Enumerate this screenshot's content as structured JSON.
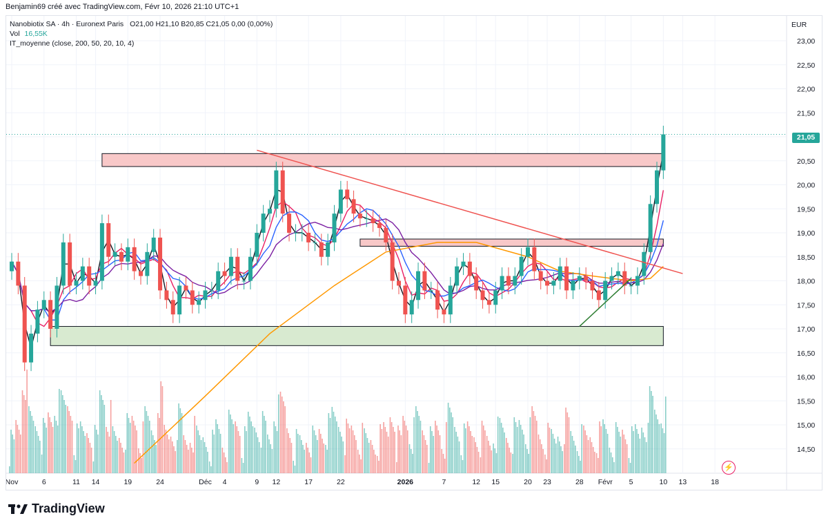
{
  "header": {
    "credit": "Benjamin69 créé avec TradingView.com, Févr 10, 2026 21:10 UTC+1"
  },
  "legend": {
    "symbol_line": "Nanobiotix SA · 4h · Euronext Paris",
    "ohlc": "O21,00  H21,10  B20,85  C21,05  0,00 (0,00%)",
    "vol_label": "Vol",
    "vol_value": "16,55K",
    "indicator": "IT_moyenne (close, 200, 50, 20, 10, 4)"
  },
  "price_axis": {
    "currency": "EUR",
    "labels": [
      "23,00",
      "22,50",
      "22,00",
      "21,50",
      "21,00",
      "20,50",
      "20,00",
      "19,50",
      "19,00",
      "18,50",
      "18,00",
      "17,50",
      "17,00",
      "16,50",
      "16,00",
      "15,50",
      "15,00",
      "14,50"
    ],
    "last_price": "21,05"
  },
  "time_axis": {
    "labels": [
      {
        "t": "Nov",
        "d": 0
      },
      {
        "t": "6",
        "d": 5
      },
      {
        "t": "11",
        "d": 10
      },
      {
        "t": "14",
        "d": 13
      },
      {
        "t": "19",
        "d": 18
      },
      {
        "t": "24",
        "d": 23
      },
      {
        "t": "Déc",
        "d": 30
      },
      {
        "t": "4",
        "d": 33
      },
      {
        "t": "9",
        "d": 38
      },
      {
        "t": "12",
        "d": 41
      },
      {
        "t": "17",
        "d": 46
      },
      {
        "t": "22",
        "d": 51
      },
      {
        "t": "2026",
        "d": 61,
        "bold": true
      },
      {
        "t": "7",
        "d": 67
      },
      {
        "t": "12",
        "d": 72
      },
      {
        "t": "15",
        "d": 75
      },
      {
        "t": "20",
        "d": 80
      },
      {
        "t": "23",
        "d": 83
      },
      {
        "t": "28",
        "d": 88
      },
      {
        "t": "Févr",
        "d": 92
      },
      {
        "t": "5",
        "d": 96
      },
      {
        "t": "10",
        "d": 101
      },
      {
        "t": "13",
        "d": 104
      },
      {
        "t": "18",
        "d": 109
      }
    ]
  },
  "footer": {
    "brand": "TradingView"
  },
  "colors": {
    "up": "#26a69a",
    "down": "#ef5350",
    "ma200": "#ff9800",
    "ma50": "#7b1fa2",
    "ma20": "#2962ff",
    "ma10": "#e91e63",
    "ma4": "#131722",
    "resistance_zone": "#f8c8c8",
    "support_zone": "#d8ead0",
    "trendline_down": "#ef5350",
    "trendline_up": "#2e7d32"
  },
  "chart_data": {
    "type": "candlestick",
    "title": "Nanobiotix SA · 4h · Euronext Paris",
    "ylabel": "EUR",
    "ylim": [
      14.2,
      23.2
    ],
    "x_unit": "trading day (0 = Nov 1)",
    "closes": [
      [
        0,
        18.4
      ],
      [
        1,
        17.9
      ],
      [
        2,
        16.3
      ],
      [
        3,
        16.9
      ],
      [
        4,
        17.4
      ],
      [
        5,
        17.6
      ],
      [
        6,
        17.0
      ],
      [
        7,
        17.9
      ],
      [
        8,
        18.8
      ],
      [
        9,
        17.9
      ],
      [
        10,
        18.0
      ],
      [
        11,
        18.3
      ],
      [
        12,
        17.9
      ],
      [
        13,
        18.0
      ],
      [
        14,
        19.2
      ],
      [
        15,
        18.5
      ],
      [
        16,
        18.6
      ],
      [
        17,
        18.4
      ],
      [
        18,
        18.7
      ],
      [
        19,
        18.2
      ],
      [
        20,
        18.1
      ],
      [
        21,
        18.6
      ],
      [
        22,
        18.9
      ],
      [
        23,
        17.8
      ],
      [
        24,
        17.6
      ],
      [
        25,
        17.3
      ],
      [
        26,
        17.9
      ],
      [
        27,
        17.8
      ],
      [
        28,
        17.5
      ],
      [
        29,
        17.6
      ],
      [
        30,
        17.8
      ],
      [
        31,
        17.8
      ],
      [
        32,
        18.2
      ],
      [
        33,
        18.1
      ],
      [
        34,
        18.5
      ],
      [
        35,
        18.0
      ],
      [
        36,
        18.0
      ],
      [
        37,
        18.5
      ],
      [
        38,
        19.0
      ],
      [
        39,
        19.4
      ],
      [
        40,
        19.5
      ],
      [
        41,
        20.3
      ],
      [
        42,
        19.4
      ],
      [
        43,
        19.0
      ],
      [
        44,
        19.0
      ],
      [
        45,
        19.0
      ],
      [
        46,
        18.8
      ],
      [
        47,
        18.8
      ],
      [
        48,
        18.5
      ],
      [
        49,
        18.8
      ],
      [
        50,
        19.4
      ],
      [
        51,
        19.9
      ],
      [
        52,
        19.7
      ],
      [
        53,
        19.4
      ],
      [
        54,
        19.3
      ],
      [
        55,
        19.3
      ],
      [
        56,
        19.2
      ],
      [
        57,
        19.1
      ],
      [
        58,
        18.8
      ],
      [
        59,
        18.0
      ],
      [
        60,
        17.9
      ],
      [
        61,
        17.3
      ],
      [
        62,
        17.6
      ],
      [
        63,
        18.2
      ],
      [
        64,
        17.8
      ],
      [
        65,
        17.8
      ],
      [
        66,
        17.4
      ],
      [
        67,
        17.3
      ],
      [
        68,
        17.9
      ],
      [
        69,
        18.3
      ],
      [
        70,
        18.4
      ],
      [
        71,
        18.1
      ],
      [
        72,
        17.8
      ],
      [
        73,
        17.6
      ],
      [
        74,
        17.5
      ],
      [
        75,
        17.8
      ],
      [
        76,
        18.1
      ],
      [
        77,
        17.9
      ],
      [
        78,
        18.1
      ],
      [
        79,
        18.5
      ],
      [
        80,
        18.7
      ],
      [
        81,
        18.2
      ],
      [
        82,
        18.0
      ],
      [
        83,
        17.9
      ],
      [
        84,
        18.0
      ],
      [
        85,
        18.3
      ],
      [
        86,
        17.8
      ],
      [
        87,
        18.0
      ],
      [
        88,
        18.1
      ],
      [
        89,
        18.0
      ],
      [
        90,
        17.8
      ],
      [
        91,
        17.6
      ],
      [
        92,
        18.0
      ],
      [
        93,
        18.1
      ],
      [
        94,
        18.2
      ],
      [
        95,
        17.9
      ],
      [
        96,
        17.9
      ],
      [
        97,
        18.1
      ],
      [
        98,
        18.6
      ],
      [
        99,
        19.6
      ],
      [
        100,
        20.3
      ],
      [
        101,
        21.05
      ]
    ],
    "series": [
      {
        "name": "Vol",
        "type": "bar",
        "note": "volume histogram at bottom"
      },
      {
        "name": "MA200",
        "color": "#ff9800",
        "points": [
          [
            19,
            14.2
          ],
          [
            30,
            15.6
          ],
          [
            40,
            16.9
          ],
          [
            50,
            17.9
          ],
          [
            58,
            18.6
          ],
          [
            66,
            18.8
          ],
          [
            72,
            18.8
          ],
          [
            80,
            18.5
          ],
          [
            85,
            18.2
          ],
          [
            90,
            18.1
          ],
          [
            96,
            18.0
          ],
          [
            99,
            18.05
          ],
          [
            101,
            18.3
          ]
        ]
      }
    ],
    "annotations": [
      {
        "type": "zone",
        "label": "resistance",
        "y": [
          20.38,
          20.65
        ],
        "x": [
          14,
          101
        ]
      },
      {
        "type": "zone",
        "label": "support",
        "y": [
          16.65,
          17.05
        ],
        "x": [
          6,
          101
        ]
      },
      {
        "type": "zone",
        "label": "pivot",
        "y": [
          18.72,
          18.87
        ],
        "x": [
          54,
          101
        ]
      },
      {
        "type": "trendline",
        "label": "descending",
        "from": [
          38,
          20.72
        ],
        "to": [
          104,
          18.15
        ]
      },
      {
        "type": "trendline",
        "label": "ascending",
        "from": [
          88,
          17.05
        ],
        "to": [
          96,
          18.05
        ]
      },
      {
        "type": "hline",
        "label": "last price",
        "y": 21.05
      }
    ]
  }
}
